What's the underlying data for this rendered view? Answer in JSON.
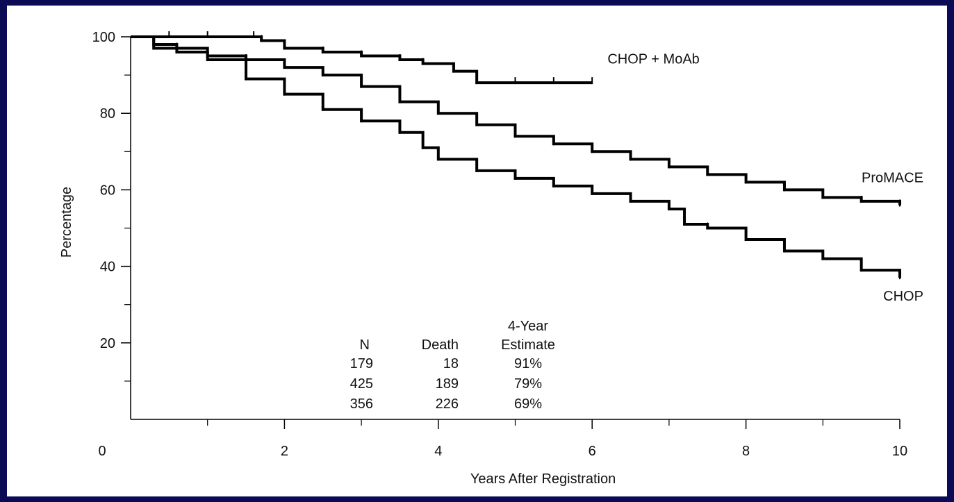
{
  "chart_data": {
    "type": "line",
    "title": "",
    "xlabel": "Years After Registration",
    "ylabel": "Percentage",
    "xlim": [
      0,
      10
    ],
    "ylim": [
      0,
      100
    ],
    "x_ticks": [
      {
        "value": 0,
        "label": "0"
      },
      {
        "value": 2,
        "label": "2"
      },
      {
        "value": 4,
        "label": "4"
      },
      {
        "value": 6,
        "label": "6"
      },
      {
        "value": 8,
        "label": "8"
      },
      {
        "value": 10,
        "label": "10"
      }
    ],
    "x_minor_ticks": [
      1,
      3,
      5,
      7,
      9
    ],
    "y_ticks": [
      {
        "value": 20,
        "label": "20"
      },
      {
        "value": 40,
        "label": "40"
      },
      {
        "value": 60,
        "label": "60"
      },
      {
        "value": 80,
        "label": "80"
      },
      {
        "value": 100,
        "label": "100"
      }
    ],
    "y_minor_ticks": [
      10,
      30,
      50,
      70,
      90
    ],
    "grid": false,
    "series": [
      {
        "name": "CHOP + MoAb",
        "color": "#000000",
        "x": [
          0,
          0.5,
          1.0,
          1.6,
          1.7,
          2.0,
          2.5,
          3.0,
          3.5,
          3.8,
          4.2,
          4.5,
          5.0,
          5.5,
          6.0
        ],
        "y": [
          100,
          100,
          100,
          100,
          99,
          97,
          96,
          95,
          94,
          93,
          91,
          88,
          88,
          88,
          88
        ]
      },
      {
        "name": "ProMACE",
        "color": "#000000",
        "x": [
          0,
          0.3,
          0.6,
          1.0,
          1.5,
          2.0,
          2.5,
          3.0,
          3.5,
          4.0,
          4.5,
          5.0,
          5.5,
          6.0,
          6.5,
          7.0,
          7.5,
          8.0,
          8.5,
          9.0,
          9.5,
          10.0
        ],
        "y": [
          100,
          98,
          97,
          95,
          94,
          92,
          90,
          87,
          83,
          80,
          77,
          74,
          72,
          70,
          68,
          66,
          64,
          62,
          60,
          58,
          57,
          56
        ]
      },
      {
        "name": "CHOP",
        "color": "#000000",
        "x": [
          0,
          0.3,
          0.6,
          1.0,
          1.5,
          2.0,
          2.5,
          3.0,
          3.5,
          3.8,
          4.0,
          4.5,
          5.0,
          5.5,
          6.0,
          6.5,
          7.0,
          7.2,
          7.5,
          8.0,
          8.5,
          9.0,
          9.5,
          10.0
        ],
        "y": [
          100,
          97,
          96,
          94,
          89,
          85,
          81,
          78,
          75,
          71,
          68,
          65,
          63,
          61,
          59,
          57,
          55,
          51,
          50,
          47,
          44,
          42,
          39,
          37
        ]
      }
    ],
    "annotations": [
      {
        "text": "CHOP + MoAb",
        "x": 6.2,
        "y": 93
      },
      {
        "text": "ProMACE",
        "x": 9.9,
        "y": 62
      },
      {
        "text": "CHOP",
        "x": 9.9,
        "y": 31
      }
    ],
    "table": {
      "headers": [
        {
          "lines": [
            "N"
          ]
        },
        {
          "lines": [
            "Death"
          ]
        },
        {
          "lines": [
            "4-Year",
            "Estimate"
          ]
        }
      ],
      "rows": [
        [
          "179",
          "18",
          "91%"
        ],
        [
          "425",
          "189",
          "79%"
        ],
        [
          "356",
          "226",
          "69%"
        ]
      ]
    }
  }
}
